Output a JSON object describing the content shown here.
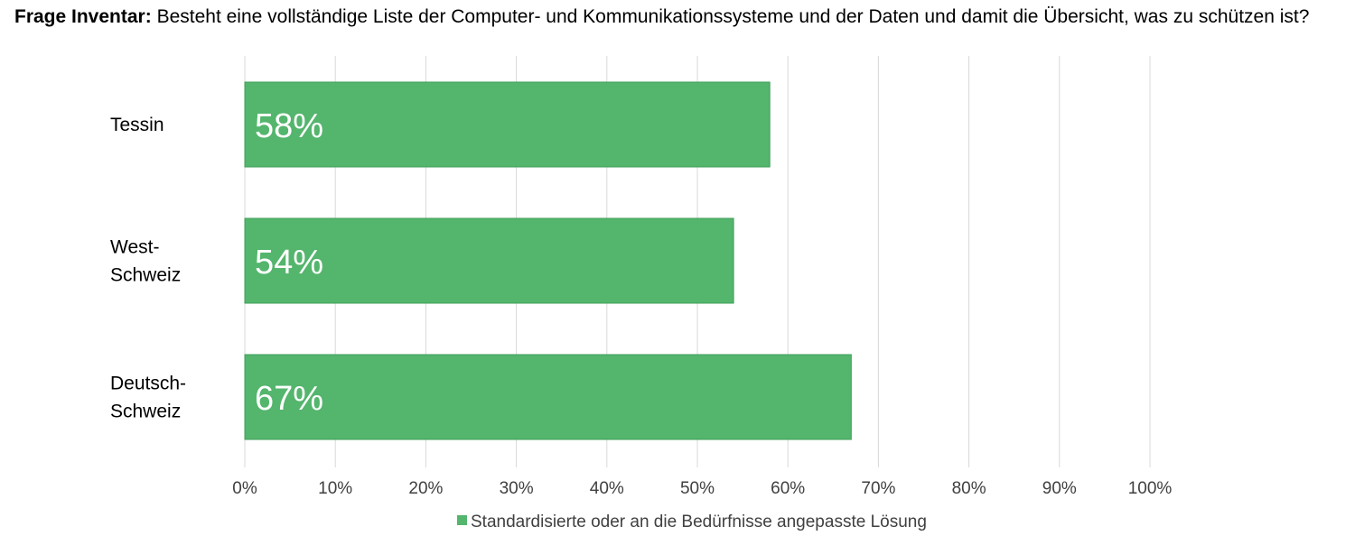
{
  "chart_data": {
    "type": "bar",
    "orientation": "horizontal",
    "title_bold": "Frage Inventar:",
    "title": "Besteht eine vollständige Liste der Computer- und Kommunikationssysteme und der Daten und damit die Übersicht, was zu schützen ist?",
    "categories": [
      [
        "Tessin"
      ],
      [
        "West-",
        "Schweiz"
      ],
      [
        "Deutsch-",
        "Schweiz"
      ]
    ],
    "series": [
      {
        "name": "Standardisierte oder an die Bedürfnisse angepasste Lösung",
        "values": [
          58,
          54,
          67
        ],
        "labels": [
          "58%",
          "54%",
          "67%"
        ],
        "color": "#54b56d"
      }
    ],
    "xlim": [
      0,
      100
    ],
    "ticks": [
      "0%",
      "10%",
      "20%",
      "30%",
      "40%",
      "50%",
      "60%",
      "70%",
      "80%",
      "90%",
      "100%"
    ],
    "grid": true,
    "legend_position": "bottom",
    "colors": {
      "bar_fill": "#54b56d",
      "bar_stroke": "#3f9e58",
      "grid": "#d9d9d9"
    }
  }
}
